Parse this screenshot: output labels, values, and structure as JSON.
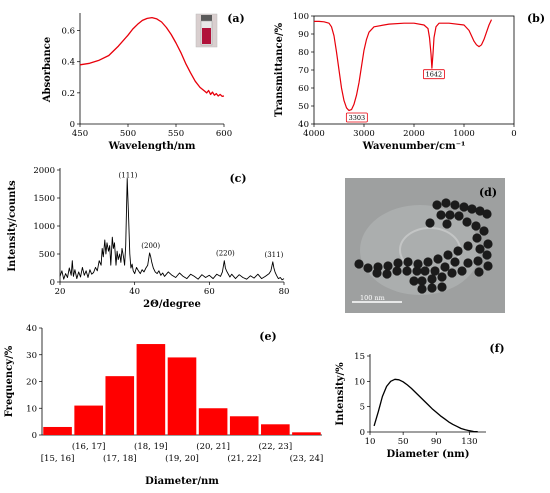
{
  "figure": {
    "panels": [
      "(a)",
      "(b)",
      "(c)",
      "(d)",
      "(e)",
      "(f)"
    ],
    "tem_scale_label": "100 nm"
  },
  "chart_data": [
    {
      "id": "a",
      "type": "line",
      "panel_label": "(a)",
      "xlabel": "Wavelength/nm",
      "ylabel": "Absorbance",
      "xlim": [
        450,
        600
      ],
      "ylim": [
        0,
        0.7
      ],
      "xticks": [
        450,
        500,
        550,
        600
      ],
      "yticks": [
        0,
        0.2,
        0.4,
        0.6
      ],
      "grid": false,
      "color": "#e8000b",
      "x": [
        450,
        460,
        470,
        480,
        490,
        500,
        505,
        510,
        515,
        520,
        525,
        530,
        535,
        540,
        545,
        550,
        555,
        560,
        565,
        570,
        575,
        580,
        582,
        584,
        586,
        588,
        590,
        592,
        594,
        596,
        598,
        600
      ],
      "y": [
        0.38,
        0.39,
        0.41,
        0.44,
        0.5,
        0.57,
        0.61,
        0.64,
        0.665,
        0.678,
        0.683,
        0.675,
        0.655,
        0.62,
        0.575,
        0.52,
        0.46,
        0.39,
        0.33,
        0.275,
        0.235,
        0.21,
        0.2,
        0.215,
        0.19,
        0.205,
        0.185,
        0.195,
        0.18,
        0.19,
        0.178,
        0.18
      ],
      "inset": "vial photograph"
    },
    {
      "id": "b",
      "type": "line",
      "panel_label": "(b)",
      "xlabel": "Wavenumber/cm⁻¹",
      "ylabel": "Transmittance/%",
      "xlim": [
        4000,
        0
      ],
      "ylim": [
        40,
        100
      ],
      "xticks": [
        4000,
        3000,
        2000,
        1000,
        0
      ],
      "yticks": [
        40,
        50,
        60,
        70,
        80,
        90,
        100
      ],
      "grid": false,
      "color": "#e8000b",
      "x": [
        4000,
        3900,
        3800,
        3700,
        3650,
        3600,
        3550,
        3500,
        3450,
        3400,
        3350,
        3303,
        3250,
        3200,
        3150,
        3100,
        3050,
        3000,
        2950,
        2900,
        2800,
        2500,
        2200,
        2000,
        1800,
        1720,
        1690,
        1660,
        1642,
        1620,
        1600,
        1560,
        1500,
        1300,
        1000,
        900,
        850,
        800,
        750,
        700,
        650,
        600,
        550,
        500,
        450
      ],
      "y": [
        97,
        97,
        96.8,
        96,
        94,
        89,
        80,
        70,
        60,
        53,
        49,
        47.5,
        48,
        51,
        56,
        63,
        72,
        81,
        87,
        91,
        94,
        95.5,
        96,
        96,
        95,
        93,
        88,
        79,
        71,
        79,
        88,
        94,
        96,
        96,
        95,
        92,
        89,
        86,
        84,
        83,
        84,
        87,
        91,
        95,
        98
      ],
      "annotations": [
        "3303",
        "1642"
      ]
    },
    {
      "id": "c",
      "type": "line",
      "panel_label": "(c)",
      "xlabel": "2Θ/degree",
      "ylabel": "Intensity/counts",
      "xlim": [
        20,
        80
      ],
      "ylim": [
        0,
        2000
      ],
      "xticks": [
        20,
        40,
        60,
        80
      ],
      "yticks": [
        0,
        500,
        1000,
        1500,
        2000
      ],
      "grid": false,
      "color": "#000000",
      "x": [
        20,
        20.5,
        21,
        21.5,
        22,
        22.5,
        23,
        23.3,
        23.6,
        24,
        24.5,
        25,
        25.5,
        26,
        26.5,
        27,
        27.5,
        28,
        28.5,
        29,
        29.5,
        30,
        30.5,
        31,
        31.3,
        31.6,
        32,
        32.3,
        32.6,
        33,
        33.3,
        33.6,
        34,
        34.3,
        34.6,
        35,
        35.3,
        35.6,
        36,
        36.3,
        36.6,
        37,
        37.3,
        37.6,
        38,
        38.2,
        38.4,
        38.7,
        39,
        39.3,
        39.6,
        40,
        40.5,
        41,
        41.5,
        42,
        42.5,
        43,
        43.5,
        44,
        44.3,
        44.6,
        45,
        45.5,
        46,
        46.5,
        47,
        47.5,
        48,
        49,
        50,
        51,
        52,
        53,
        54,
        55,
        56,
        57,
        58,
        59,
        60,
        61,
        62,
        63,
        63.5,
        64,
        64.3,
        64.6,
        65,
        65.5,
        66,
        67,
        68,
        69,
        70,
        71,
        72,
        73,
        74,
        75,
        76,
        76.5,
        77,
        77.3,
        77.6,
        78,
        78.5,
        79,
        79.5,
        80
      ],
      "y": [
        100,
        200,
        50,
        150,
        80,
        250,
        120,
        380,
        100,
        220,
        60,
        180,
        90,
        260,
        120,
        200,
        80,
        220,
        140,
        170,
        260,
        200,
        380,
        300,
        600,
        450,
        750,
        500,
        700,
        550,
        650,
        300,
        800,
        600,
        700,
        300,
        550,
        400,
        500,
        350,
        600,
        450,
        300,
        650,
        1850,
        1500,
        1100,
        500,
        250,
        320,
        200,
        150,
        260,
        200,
        150,
        220,
        180,
        250,
        300,
        520,
        450,
        350,
        250,
        180,
        150,
        200,
        120,
        160,
        100,
        180,
        120,
        80,
        160,
        100,
        60,
        140,
        100,
        50,
        130,
        80,
        120,
        60,
        140,
        100,
        180,
        380,
        250,
        200,
        150,
        90,
        140,
        60,
        130,
        80,
        50,
        110,
        70,
        140,
        60,
        100,
        150,
        200,
        360,
        250,
        180,
        120,
        60,
        80,
        40,
        60
      ],
      "peak_labels": [
        {
          "text": "(111)",
          "x": 38.2
        },
        {
          "text": "(200)",
          "x": 44.3
        },
        {
          "text": "(220)",
          "x": 64.3
        },
        {
          "text": "(311)",
          "x": 77.3
        }
      ]
    },
    {
      "id": "e",
      "type": "bar",
      "panel_label": "(e)",
      "xlabel": "Diameter/nm",
      "ylabel": "Frequency/%",
      "ylim": [
        0,
        40
      ],
      "yticks": [
        0,
        10,
        20,
        30,
        40
      ],
      "grid": false,
      "color": "#ff0000",
      "categories": [
        "[15, 16]",
        "(16, 17]",
        "(17, 18]",
        "(18, 19]",
        "(19, 20]",
        "(20, 21]",
        "(21, 22]",
        "(22, 23]",
        "(23, 24]"
      ],
      "values": [
        3,
        11,
        22,
        34,
        29,
        10,
        7,
        4,
        1
      ]
    },
    {
      "id": "f",
      "type": "line",
      "panel_label": "(f)",
      "xlabel": "Diameter (nm)",
      "ylabel": "Intensity/%",
      "xlim": [
        10,
        150
      ],
      "ylim": [
        0,
        15
      ],
      "xticks": [
        10,
        50,
        90,
        130
      ],
      "yticks": [
        0,
        5,
        10,
        15
      ],
      "grid": false,
      "color": "#000000",
      "x": [
        15,
        20,
        25,
        30,
        35,
        40,
        45,
        50,
        55,
        60,
        65,
        70,
        75,
        80,
        85,
        90,
        95,
        100,
        105,
        110,
        115,
        120,
        125,
        130,
        135,
        140
      ],
      "y": [
        1.2,
        4,
        7,
        9,
        10,
        10.4,
        10.3,
        9.9,
        9.3,
        8.6,
        7.8,
        7,
        6.2,
        5.4,
        4.6,
        3.9,
        3.2,
        2.6,
        2,
        1.5,
        1.1,
        0.7,
        0.45,
        0.25,
        0.1,
        0.05
      ]
    }
  ]
}
